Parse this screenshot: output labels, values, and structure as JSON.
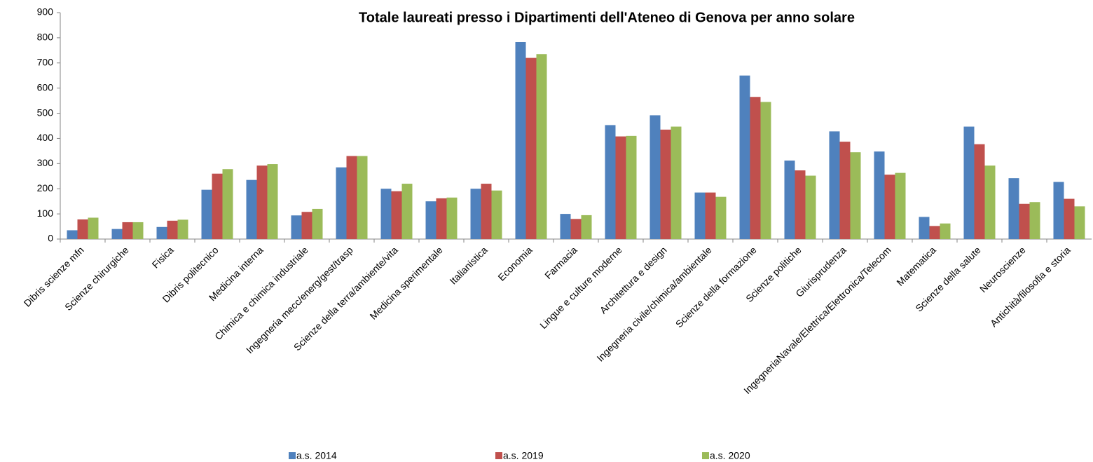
{
  "chart_data": {
    "type": "bar",
    "title": "Totale laureati presso i Dipartimenti dell'Ateneo di Genova per anno solare",
    "categories": [
      "Dibris scienze mfn",
      "Scienze chirurgiche",
      "Fisica",
      "Dibris politecnico",
      "Medicina interna",
      "Chimica e chimica industriale",
      "Ingegneria mecc/energ/gest/trasp",
      "Scienze della terra/ambiente/vita",
      "Medicina sperimentale",
      "Italianistica",
      "Economia",
      "Farmacia",
      "Lingue e culture moderne",
      "Architettura e design",
      "Ingegneria civile/chimica/ambientale",
      "Scienze della formazione",
      "Scienze politiche",
      "Giurisprudenza",
      "IngegneriaNavale/Elettrica/Elettronica/Telecom",
      "Matematica",
      "Scienze della salute",
      "Neuroscienze",
      "Antichità/filosofia e storia"
    ],
    "series": [
      {
        "name": "a.s. 2014",
        "color": "#4f81bd",
        "values": [
          35,
          40,
          48,
          196,
          235,
          94,
          285,
          200,
          150,
          200,
          783,
          100,
          453,
          492,
          185,
          650,
          312,
          428,
          348,
          88,
          447,
          242,
          227
        ]
      },
      {
        "name": "a.s. 2019",
        "color": "#c0504d",
        "values": [
          78,
          67,
          73,
          260,
          292,
          108,
          330,
          190,
          162,
          220,
          720,
          80,
          408,
          435,
          185,
          565,
          273,
          387,
          256,
          52,
          377,
          140,
          160
        ]
      },
      {
        "name": "a.s. 2020",
        "color": "#9bbb59",
        "values": [
          85,
          67,
          77,
          278,
          298,
          120,
          330,
          220,
          165,
          193,
          735,
          95,
          410,
          447,
          168,
          545,
          252,
          345,
          263,
          62,
          292,
          147,
          130
        ]
      }
    ],
    "ylim": [
      0,
      900
    ],
    "yticks": [
      0,
      100,
      200,
      300,
      400,
      500,
      600,
      700,
      800,
      900
    ],
    "grid": false,
    "legend": "bottom"
  }
}
